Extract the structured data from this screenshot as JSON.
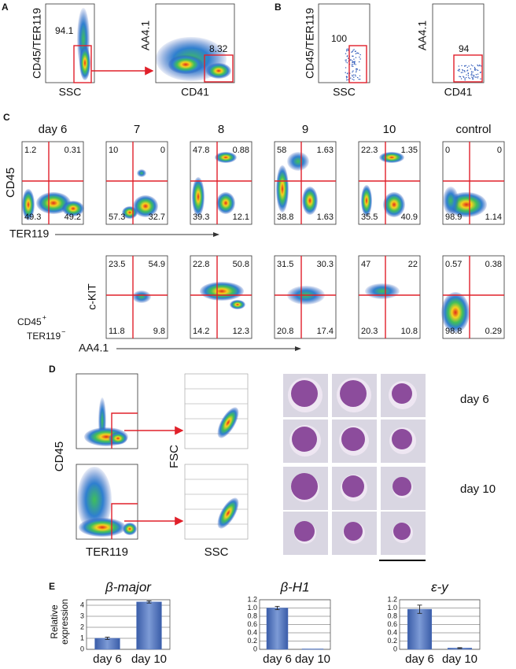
{
  "panel_a": {
    "letter": "A",
    "plots": [
      {
        "y_label": "CD45/TER119",
        "x_label": "SSC",
        "gate_value": 94.1
      },
      {
        "y_label": "AA4.1",
        "x_label": "CD41",
        "gate_value": 8.32
      }
    ]
  },
  "panel_b": {
    "letter": "B",
    "plots": [
      {
        "y_label": "CD45/TER119",
        "x_label": "SSC",
        "gate_value": 100
      },
      {
        "y_label": "AA4.1",
        "x_label": "CD41",
        "gate_value": 94
      }
    ]
  },
  "panel_c": {
    "letter": "C",
    "columns": [
      "day 6",
      "7",
      "8",
      "9",
      "10",
      "control"
    ],
    "row1": {
      "y_label": "CD45",
      "x_label": "TER119",
      "quadrants": [
        [
          1.2,
          0.31,
          49.3,
          49.2
        ],
        [
          10,
          0,
          57.3,
          32.7
        ],
        [
          47.8,
          0.88,
          39.3,
          12.1
        ],
        [
          58,
          1.63,
          38.8,
          1.63
        ],
        [
          22.3,
          1.35,
          35.5,
          40.9
        ],
        [
          0,
          0,
          98.9,
          1.14
        ]
      ]
    },
    "row2": {
      "population": [
        {
          "text": "CD45",
          "sup": "+"
        },
        {
          "text": "TER119",
          "sup": "−"
        }
      ],
      "y_label": "c-KIT",
      "x_label": "AA4.1",
      "quadrants": [
        [
          23.5,
          54.9,
          11.8,
          9.8
        ],
        [
          22.8,
          50.8,
          14.2,
          12.3
        ],
        [
          31.5,
          30.3,
          20.8,
          17.4
        ],
        [
          47,
          22,
          20.3,
          10.8
        ],
        [
          0.57,
          0.38,
          98.8,
          0.29
        ]
      ]
    }
  },
  "panel_d": {
    "letter": "D",
    "y_label": "CD45",
    "x_label": "TER119",
    "y_label_2": "FSC",
    "x_label_2": "SSC",
    "rows": [
      "day 6",
      "day 10"
    ]
  },
  "panel_e": {
    "letter": "E",
    "y_label": [
      "Relative",
      "expression"
    ]
  },
  "chart_data": [
    {
      "type": "bar",
      "title": "β-major",
      "categories": [
        "day 6",
        "day 10"
      ],
      "values": [
        1.0,
        4.3
      ],
      "errors": [
        0.1,
        0.1
      ],
      "color": "#4a6fbd",
      "ylim": [
        0,
        4.5
      ],
      "yticks": [
        0,
        1,
        2,
        3,
        4
      ],
      "grid": true
    },
    {
      "type": "bar",
      "title": "β-H1",
      "categories": [
        "day 6",
        "day 10"
      ],
      "values": [
        1.0,
        0.01
      ],
      "errors": [
        0.04,
        0
      ],
      "color": "#4a6fbd",
      "ylim": [
        0,
        1.2
      ],
      "yticks": [
        0,
        0.2,
        0.4,
        0.6,
        0.8,
        {
          "value": 1,
          "label": "1.0"
        },
        1.2
      ],
      "grid": true
    },
    {
      "type": "bar",
      "title": "ε-y",
      "categories": [
        "day 6",
        "day 10"
      ],
      "values": [
        0.97,
        0.03
      ],
      "errors": [
        0.1,
        0.01
      ],
      "color": "#4a6fbd",
      "ylim": [
        0,
        1.2
      ],
      "yticks": [
        0,
        0.2,
        0.4,
        0.6,
        0.8,
        {
          "value": 1,
          "label": "1.0"
        },
        1.2
      ],
      "grid": true
    }
  ]
}
